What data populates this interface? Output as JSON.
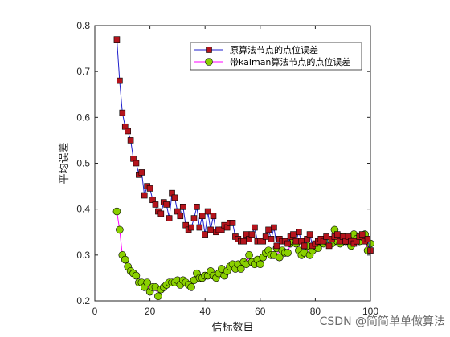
{
  "chart_data": {
    "type": "line",
    "title": "",
    "xlabel": "信标数目",
    "ylabel": "平均误差",
    "xlim": [
      0,
      100
    ],
    "ylim": [
      0.2,
      0.8
    ],
    "xticks": [
      0,
      20,
      40,
      60,
      80,
      100
    ],
    "yticks": [
      0.2,
      0.3,
      0.4,
      0.5,
      0.6,
      0.7,
      0.8
    ],
    "grid": false,
    "legend_position": "top-right",
    "x": [
      8,
      9,
      10,
      11,
      12,
      13,
      14,
      15,
      16,
      17,
      18,
      19,
      20,
      21,
      22,
      23,
      24,
      25,
      26,
      27,
      28,
      29,
      30,
      31,
      32,
      33,
      34,
      35,
      36,
      37,
      38,
      39,
      40,
      41,
      42,
      43,
      44,
      45,
      46,
      47,
      48,
      49,
      50,
      51,
      52,
      53,
      54,
      55,
      56,
      57,
      58,
      59,
      60,
      61,
      62,
      63,
      64,
      65,
      66,
      67,
      68,
      69,
      70,
      71,
      72,
      73,
      74,
      75,
      76,
      77,
      78,
      79,
      80,
      81,
      82,
      83,
      84,
      85,
      86,
      87,
      88,
      89,
      90,
      91,
      92,
      93,
      94,
      95,
      96,
      97,
      98,
      99,
      100
    ],
    "series": [
      {
        "name": "原算法节点的点位误差",
        "color": "#1f1fcc",
        "marker": "square",
        "marker_color": "#b5141c",
        "values": [
          0.77,
          0.68,
          0.61,
          0.58,
          0.57,
          0.55,
          0.51,
          0.5,
          0.475,
          0.48,
          0.43,
          0.45,
          0.445,
          0.42,
          0.41,
          0.395,
          0.39,
          0.415,
          0.41,
          0.38,
          0.435,
          0.425,
          0.395,
          0.385,
          0.405,
          0.365,
          0.355,
          0.36,
          0.38,
          0.405,
          0.36,
          0.385,
          0.345,
          0.395,
          0.355,
          0.385,
          0.35,
          0.355,
          0.355,
          0.365,
          0.36,
          0.37,
          0.37,
          0.34,
          0.335,
          0.33,
          0.33,
          0.345,
          0.335,
          0.345,
          0.36,
          0.33,
          0.33,
          0.33,
          0.34,
          0.355,
          0.335,
          0.36,
          0.32,
          0.335,
          0.33,
          0.33,
          0.325,
          0.34,
          0.345,
          0.33,
          0.35,
          0.33,
          0.32,
          0.335,
          0.345,
          0.32,
          0.325,
          0.33,
          0.335,
          0.33,
          0.34,
          0.32,
          0.335,
          0.34,
          0.345,
          0.33,
          0.34,
          0.33,
          0.34,
          0.33,
          0.325,
          0.33,
          0.34,
          0.345,
          0.33,
          0.335,
          0.31
        ]
      },
      {
        "name": "带kalman算法节点的点位误差",
        "color": "#ff00ff",
        "marker": "circle",
        "marker_color": "#8ad000",
        "values": [
          0.395,
          0.355,
          0.3,
          0.29,
          0.275,
          0.265,
          0.26,
          0.255,
          0.24,
          0.24,
          0.23,
          0.24,
          0.22,
          0.23,
          0.23,
          0.21,
          0.225,
          0.23,
          0.235,
          0.24,
          0.24,
          0.24,
          0.245,
          0.235,
          0.245,
          0.24,
          0.235,
          0.23,
          0.245,
          0.26,
          0.25,
          0.25,
          0.255,
          0.255,
          0.265,
          0.255,
          0.25,
          0.26,
          0.27,
          0.255,
          0.265,
          0.275,
          0.28,
          0.27,
          0.28,
          0.27,
          0.285,
          0.28,
          0.3,
          0.285,
          0.28,
          0.29,
          0.28,
          0.295,
          0.305,
          0.31,
          0.3,
          0.3,
          0.315,
          0.295,
          0.31,
          0.305,
          0.305,
          0.325,
          0.33,
          0.325,
          0.31,
          0.3,
          0.305,
          0.32,
          0.3,
          0.31,
          0.32,
          0.315,
          0.33,
          0.325,
          0.33,
          0.33,
          0.325,
          0.355,
          0.33,
          0.325,
          0.34,
          0.33,
          0.33,
          0.32,
          0.345,
          0.335,
          0.33,
          0.34,
          0.345,
          0.31,
          0.325
        ]
      }
    ]
  },
  "watermark": "CSDN @简简单单做算法"
}
